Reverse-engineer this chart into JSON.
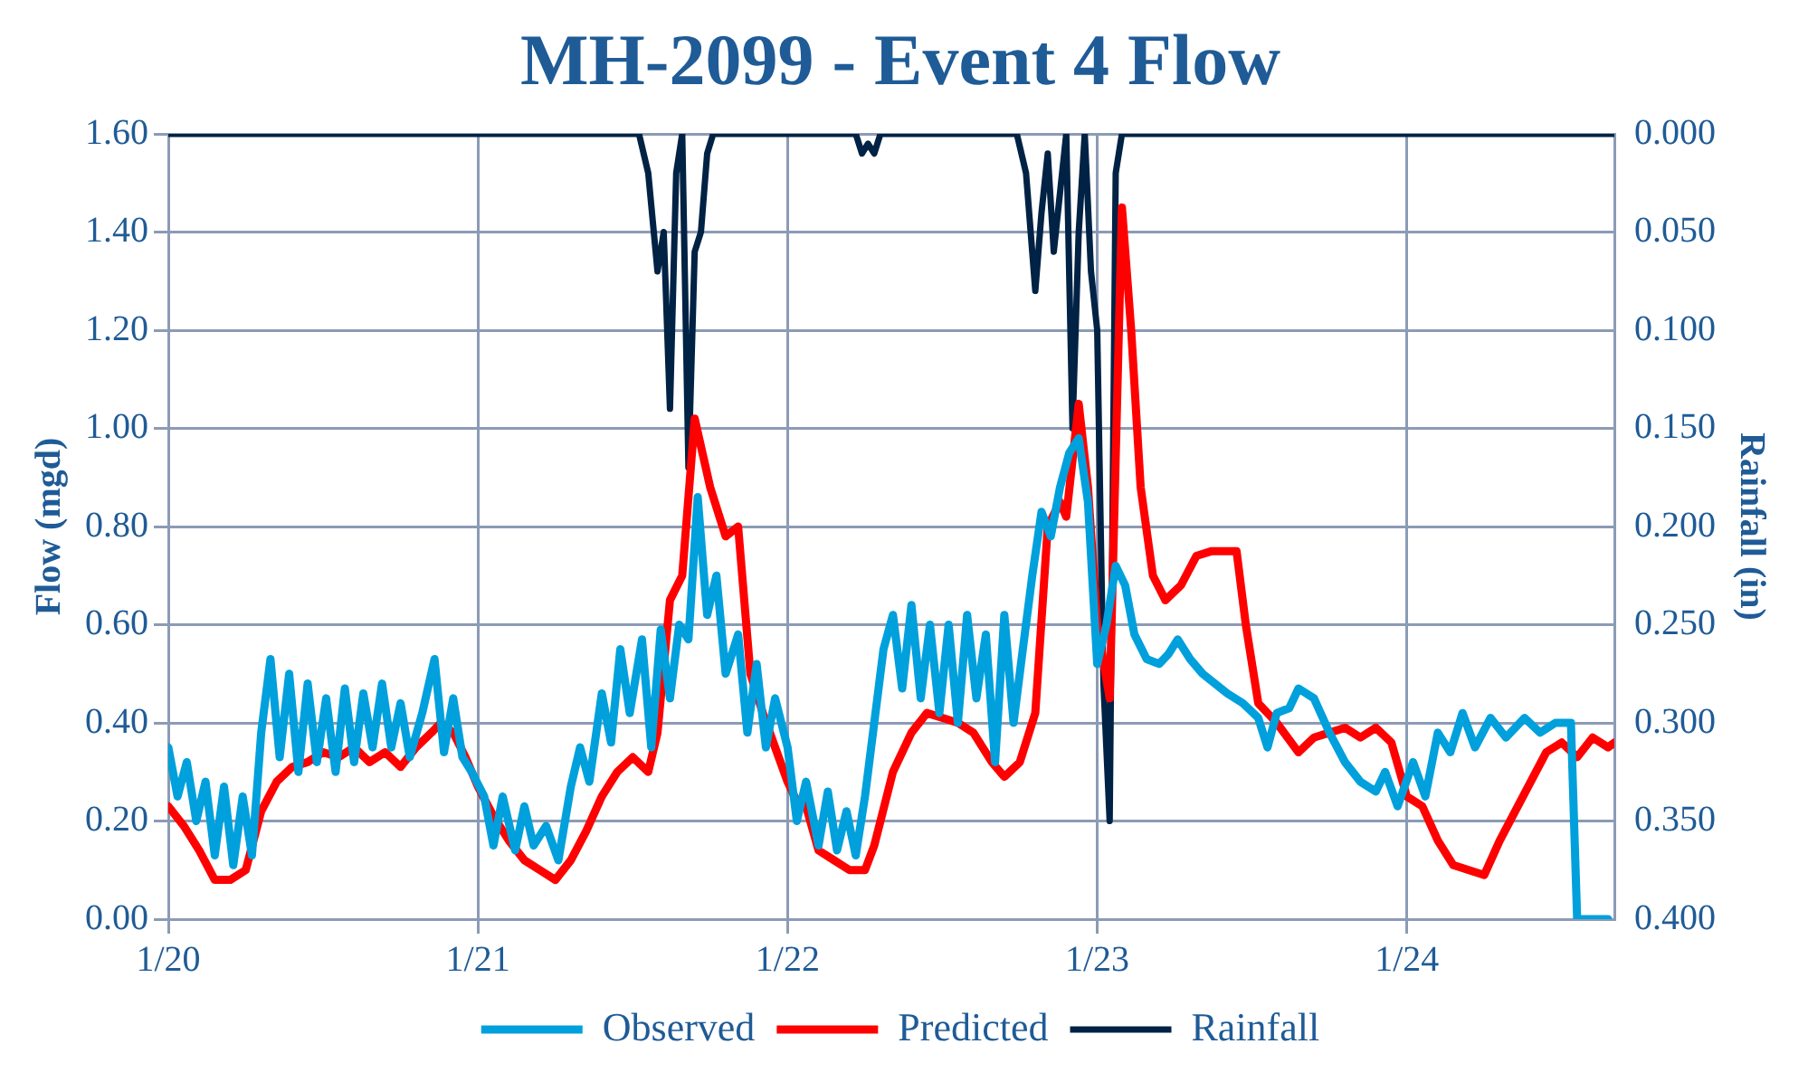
{
  "chart_data": {
    "type": "line",
    "title": "MH-2099 - Event 4 Flow",
    "ylabel": "Flow (mgd)",
    "y2label": "Rainfall (in)",
    "xlim": [
      "--01-20",
      "--01-24T16:05"
    ],
    "xticks": [
      {
        "value": "--01-20",
        "label": "1/20"
      },
      {
        "value": "--01-21",
        "label": "1/21"
      },
      {
        "value": "--01-22",
        "label": "1/22"
      },
      {
        "value": "--01-23",
        "label": "1/23"
      },
      {
        "value": "--01-24",
        "label": "1/24"
      }
    ],
    "ylim": [
      0,
      1.6
    ],
    "yticks": [
      {
        "value": 0,
        "label": "0.00"
      },
      {
        "value": 0.2,
        "label": "0.20"
      },
      {
        "value": 0.4,
        "label": "0.40"
      },
      {
        "value": 0.6,
        "label": "0.60"
      },
      {
        "value": 0.8,
        "label": "0.80"
      },
      {
        "value": 1.0,
        "label": "1.00"
      },
      {
        "value": 1.2,
        "label": "1.20"
      },
      {
        "value": 1.4,
        "label": "1.40"
      },
      {
        "value": 1.6,
        "label": "1.60"
      }
    ],
    "y2lim": [
      0.4,
      0
    ],
    "y2ticks": [
      {
        "value": 0,
        "label": "0.000"
      },
      {
        "value": 0.05,
        "label": "0.050"
      },
      {
        "value": 0.1,
        "label": "0.100"
      },
      {
        "value": 0.15,
        "label": "0.150"
      },
      {
        "value": 0.2,
        "label": "0.200"
      },
      {
        "value": 0.25,
        "label": "0.250"
      },
      {
        "value": 0.3,
        "label": "0.300"
      },
      {
        "value": 0.35,
        "label": "0.350"
      },
      {
        "value": 0.4,
        "label": "0.400"
      }
    ],
    "grid": true,
    "legend": "bottom",
    "marker": "none",
    "line_style": "solid",
    "series": [
      {
        "name": "Observed",
        "color": "#00a0dc",
        "x": [
          "--01-20T00:00",
          "--01-20T00:43",
          "--01-20T01:26",
          "--01-20T02:10",
          "--01-20T02:53",
          "--01-20T03:36",
          "--01-20T04:19",
          "--01-20T05:02",
          "--01-20T05:46",
          "--01-20T06:29",
          "--01-20T07:12",
          "--01-20T07:55",
          "--01-20T08:38",
          "--01-20T09:22",
          "--01-20T10:05",
          "--01-20T10:48",
          "--01-20T11:31",
          "--01-20T12:14",
          "--01-20T12:58",
          "--01-20T13:41",
          "--01-20T14:24",
          "--01-20T15:07",
          "--01-20T15:50",
          "--01-20T16:34",
          "--01-20T17:17",
          "--01-20T18:00",
          "--01-20T18:43",
          "--01-20T19:41",
          "--01-20T20:38",
          "--01-20T21:22",
          "--01-20T22:05",
          "--01-20T22:48",
          "--01-20T23:31",
          "--01-21T00:29",
          "--01-21T01:12",
          "--01-21T01:55",
          "--01-21T02:53",
          "--01-21T03:36",
          "--01-21T04:19",
          "--01-21T05:17",
          "--01-21T06:14",
          "--01-21T07:12",
          "--01-21T07:55",
          "--01-21T08:38",
          "--01-21T09:36",
          "--01-21T10:19",
          "--01-21T11:02",
          "--01-21T11:46",
          "--01-21T12:43",
          "--01-21T13:26",
          "--01-21T14:10",
          "--01-21T14:53",
          "--01-21T15:36",
          "--01-21T16:19",
          "--01-21T17:02",
          "--01-21T17:46",
          "--01-21T18:29",
          "--01-21T19:12",
          "--01-21T20:10",
          "--01-21T20:53",
          "--01-21T21:36",
          "--01-21T22:19",
          "--01-21T23:02",
          "--01-22T00:00",
          "--01-22T00:43",
          "--01-22T01:26",
          "--01-22T02:24",
          "--01-22T03:07",
          "--01-22T03:50",
          "--01-22T04:34",
          "--01-22T05:17",
          "--01-22T06:00",
          "--01-22T06:43",
          "--01-22T07:26",
          "--01-22T08:10",
          "--01-22T08:53",
          "--01-22T09:36",
          "--01-22T10:19",
          "--01-22T11:02",
          "--01-22T11:46",
          "--01-22T12:29",
          "--01-22T13:12",
          "--01-22T13:55",
          "--01-22T14:38",
          "--01-22T15:22",
          "--01-22T16:05",
          "--01-22T16:48",
          "--01-22T17:31",
          "--01-22T18:14",
          "--01-22T18:58",
          "--01-22T19:41",
          "--01-22T20:24",
          "--01-22T21:07",
          "--01-22T21:50",
          "--01-22T22:34",
          "--01-22T23:17",
          "--01-23T00:00",
          "--01-23T00:43",
          "--01-23T01:26",
          "--01-23T02:10",
          "--01-23T02:53",
          "--01-23T03:50",
          "--01-23T04:48",
          "--01-23T05:31",
          "--01-23T06:14",
          "--01-23T07:12",
          "--01-23T08:10",
          "--01-23T09:07",
          "--01-23T10:05",
          "--01-23T11:17",
          "--01-23T12:29",
          "--01-23T13:12",
          "--01-23T13:55",
          "--01-23T14:53",
          "--01-23T15:36",
          "--01-23T16:48",
          "--01-23T18:00",
          "--01-23T19:12",
          "--01-23T20:24",
          "--01-23T21:36",
          "--01-23T22:19",
          "--01-23T23:17",
          "--01-24T00:29",
          "--01-24T01:26",
          "--01-24T02:24",
          "--01-24T03:22",
          "--01-24T04:19",
          "--01-24T05:17",
          "--01-24T06:29",
          "--01-24T07:41",
          "--01-24T09:07",
          "--01-24T10:19",
          "--01-24T11:31",
          "--01-24T12:43",
          "--01-24T13:12",
          "--01-24T15:36"
        ],
        "values": [
          0.35,
          0.25,
          0.32,
          0.2,
          0.28,
          0.13,
          0.27,
          0.11,
          0.25,
          0.13,
          0.38,
          0.53,
          0.33,
          0.5,
          0.3,
          0.48,
          0.32,
          0.45,
          0.3,
          0.47,
          0.32,
          0.46,
          0.35,
          0.48,
          0.35,
          0.44,
          0.33,
          0.42,
          0.53,
          0.34,
          0.45,
          0.33,
          0.3,
          0.25,
          0.15,
          0.25,
          0.14,
          0.23,
          0.15,
          0.19,
          0.12,
          0.27,
          0.35,
          0.28,
          0.46,
          0.36,
          0.55,
          0.42,
          0.57,
          0.35,
          0.59,
          0.45,
          0.6,
          0.57,
          0.86,
          0.62,
          0.7,
          0.5,
          0.58,
          0.38,
          0.52,
          0.35,
          0.45,
          0.35,
          0.2,
          0.28,
          0.15,
          0.26,
          0.14,
          0.22,
          0.13,
          0.25,
          0.4,
          0.55,
          0.62,
          0.47,
          0.64,
          0.45,
          0.6,
          0.42,
          0.6,
          0.4,
          0.62,
          0.45,
          0.58,
          0.32,
          0.62,
          0.4,
          0.55,
          0.7,
          0.83,
          0.78,
          0.88,
          0.95,
          0.98,
          0.85,
          0.52,
          0.6,
          0.72,
          0.68,
          0.58,
          0.53,
          0.52,
          0.54,
          0.57,
          0.53,
          0.5,
          0.48,
          0.46,
          0.44,
          0.41,
          0.35,
          0.42,
          0.43,
          0.47,
          0.45,
          0.38,
          0.32,
          0.28,
          0.26,
          0.3,
          0.23,
          0.32,
          0.25,
          0.38,
          0.34,
          0.42,
          0.35,
          0.41,
          0.37,
          0.41,
          0.38,
          0.4,
          0.4,
          0.0,
          0.0
        ]
      },
      {
        "name": "Predicted",
        "color": "#ff0000",
        "x": [
          "--01-20T00:00",
          "--01-20T01:12",
          "--01-20T02:24",
          "--01-20T03:36",
          "--01-20T04:48",
          "--01-20T06:00",
          "--01-20T07:12",
          "--01-20T08:24",
          "--01-20T09:36",
          "--01-20T10:48",
          "--01-20T12:00",
          "--01-20T13:12",
          "--01-20T14:24",
          "--01-20T15:36",
          "--01-20T16:48",
          "--01-20T18:00",
          "--01-20T19:12",
          "--01-20T20:24",
          "--01-20T21:07",
          "--01-20T22:05",
          "--01-20T23:02",
          "--01-21T00:00",
          "--01-21T01:12",
          "--01-21T02:24",
          "--01-21T03:36",
          "--01-21T04:48",
          "--01-21T06:00",
          "--01-21T07:12",
          "--01-21T08:24",
          "--01-21T09:36",
          "--01-21T10:48",
          "--01-21T12:00",
          "--01-21T13:12",
          "--01-21T13:55",
          "--01-21T14:53",
          "--01-21T15:50",
          "--01-21T16:48",
          "--01-21T18:00",
          "--01-21T19:12",
          "--01-21T20:10",
          "--01-21T21:07",
          "--01-21T22:05",
          "--01-21T23:02",
          "--01-22T00:00",
          "--01-22T00:43",
          "--01-22T01:26",
          "--01-22T02:24",
          "--01-22T03:36",
          "--01-22T04:48",
          "--01-22T06:00",
          "--01-22T06:43",
          "--01-22T08:10",
          "--01-22T09:36",
          "--01-22T10:48",
          "--01-22T12:00",
          "--01-22T13:12",
          "--01-22T14:24",
          "--01-22T15:50",
          "--01-22T16:48",
          "--01-22T18:00",
          "--01-22T19:12",
          "--01-22T20:10",
          "--01-22T21:07",
          "--01-22T21:36",
          "--01-22T22:34",
          "--01-22T23:17",
          "--01-23T00:00",
          "--01-23T00:58",
          "--01-23T01:55",
          "--01-23T02:38",
          "--01-23T03:22",
          "--01-23T04:19",
          "--01-23T05:17",
          "--01-23T06:29",
          "--01-23T07:41",
          "--01-23T08:53",
          "--01-23T10:05",
          "--01-23T10:48",
          "--01-23T11:31",
          "--01-23T12:29",
          "--01-23T13:55",
          "--01-23T15:36",
          "--01-23T16:48",
          "--01-23T18:00",
          "--01-23T19:12",
          "--01-23T20:24",
          "--01-23T21:36",
          "--01-23T22:48",
          "--01-24T00:00",
          "--01-24T01:12",
          "--01-24T02:24",
          "--01-24T03:36",
          "--01-24T04:48",
          "--01-24T06:00",
          "--01-24T07:12",
          "--01-24T08:24",
          "--01-24T09:36",
          "--01-24T10:48",
          "--01-24T12:00",
          "--01-24T13:12",
          "--01-24T14:24",
          "--01-24T15:36",
          "--01-24T16:05"
        ],
        "values": [
          0.23,
          0.19,
          0.14,
          0.08,
          0.08,
          0.1,
          0.22,
          0.28,
          0.31,
          0.32,
          0.34,
          0.33,
          0.35,
          0.32,
          0.34,
          0.31,
          0.35,
          0.38,
          0.4,
          0.38,
          0.33,
          0.27,
          0.21,
          0.16,
          0.12,
          0.1,
          0.08,
          0.12,
          0.18,
          0.25,
          0.3,
          0.33,
          0.3,
          0.38,
          0.65,
          0.7,
          1.02,
          0.88,
          0.78,
          0.8,
          0.5,
          0.42,
          0.35,
          0.28,
          0.24,
          0.23,
          0.14,
          0.12,
          0.1,
          0.1,
          0.15,
          0.3,
          0.38,
          0.42,
          0.41,
          0.4,
          0.38,
          0.32,
          0.29,
          0.32,
          0.42,
          0.8,
          0.85,
          0.82,
          1.05,
          0.88,
          0.6,
          0.45,
          1.45,
          1.2,
          0.88,
          0.7,
          0.65,
          0.68,
          0.74,
          0.75,
          0.75,
          0.75,
          0.6,
          0.44,
          0.4,
          0.34,
          0.37,
          0.38,
          0.39,
          0.37,
          0.39,
          0.36,
          0.25,
          0.23,
          0.16,
          0.11,
          0.1,
          0.09,
          0.16,
          0.22,
          0.28,
          0.34,
          0.36,
          0.33,
          0.37,
          0.35,
          0.36
        ]
      },
      {
        "name": "Rainfall",
        "color": "#002244",
        "axis": "y2",
        "x": [
          "--01-20T00:00",
          "--01-21T12:29",
          "--01-21T13:12",
          "--01-21T13:55",
          "--01-21T14:24",
          "--01-21T14:53",
          "--01-21T15:22",
          "--01-21T15:50",
          "--01-21T16:19",
          "--01-21T16:48",
          "--01-21T17:17",
          "--01-21T17:46",
          "--01-21T18:14",
          "--01-22T05:17",
          "--01-22T05:46",
          "--01-22T06:14",
          "--01-22T06:43",
          "--01-22T07:12",
          "--01-22T17:46",
          "--01-22T18:29",
          "--01-22T19:12",
          "--01-22T19:41",
          "--01-22T20:10",
          "--01-22T20:38",
          "--01-22T21:07",
          "--01-22T21:36",
          "--01-22T22:05",
          "--01-22T22:34",
          "--01-22T23:02",
          "--01-22T23:31",
          "--01-23T00:00",
          "--01-23T00:29",
          "--01-23T00:58",
          "--01-23T01:26",
          "--01-23T01:55",
          "--01-24T16:05"
        ],
        "values": [
          0,
          0,
          0.02,
          0.07,
          0.05,
          0.14,
          0.02,
          0,
          0.17,
          0.06,
          0.05,
          0.01,
          0,
          0,
          0.01,
          0.005,
          0.01,
          0,
          0,
          0.02,
          0.08,
          0.04,
          0.01,
          0.06,
          0.03,
          0,
          0.15,
          0.05,
          0,
          0.07,
          0.1,
          0.28,
          0.35,
          0.02,
          0,
          0
        ]
      }
    ]
  }
}
